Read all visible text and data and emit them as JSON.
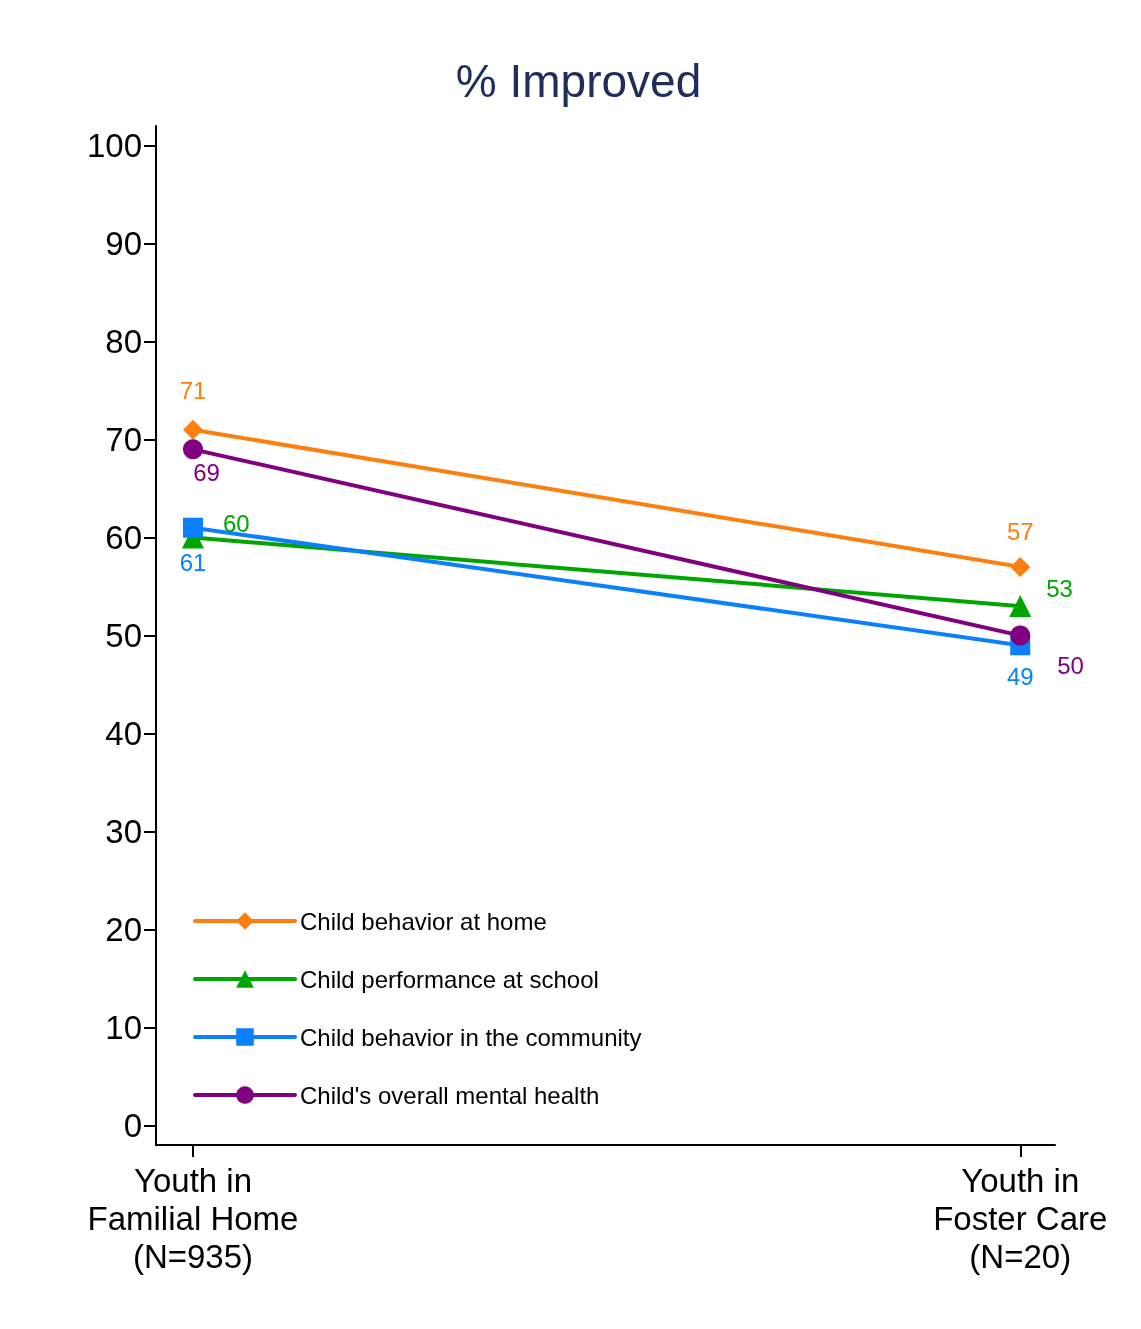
{
  "chart_data": {
    "type": "line",
    "title": "% Improved",
    "categories": [
      "Youth in\nFamilial Home\n(N=935)",
      "Youth in\nFoster Care\n(N=20)"
    ],
    "series": [
      {
        "name": "Child behavior at home",
        "color": "#ff7f0e",
        "marker": "diamond",
        "values": [
          71,
          57
        ]
      },
      {
        "name": "Child performance at school",
        "color": "#00a600",
        "marker": "triangle",
        "values": [
          60,
          53
        ]
      },
      {
        "name": "Child behavior in the community",
        "color": "#0a80ff",
        "marker": "square",
        "values": [
          61,
          49
        ]
      },
      {
        "name": "Child's overall mental health",
        "color": "#800080",
        "marker": "circle",
        "values": [
          69,
          50
        ]
      }
    ],
    "data_labels": true,
    "ylim": [
      -2,
      102
    ],
    "yticks": [
      0,
      10,
      20,
      30,
      40,
      50,
      60,
      70,
      80,
      90,
      100
    ],
    "grid": false,
    "legend": "bottom left",
    "line_style": "solid"
  }
}
